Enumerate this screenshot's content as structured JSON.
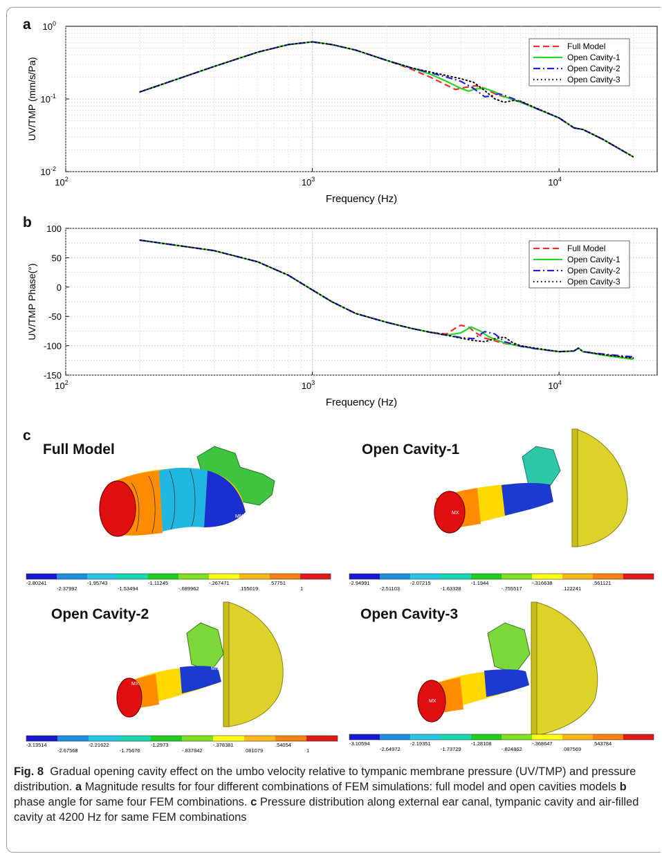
{
  "panels": {
    "a": "a",
    "b": "b",
    "c": "c"
  },
  "chart_data": [
    {
      "type": "line",
      "panel": "a",
      "xlabel": "Frequency (Hz)",
      "ylabel": "UV/TMP (mm/s/Pa)",
      "xscale": "log",
      "yscale": "log",
      "xlim": [
        100,
        25000
      ],
      "ylim": [
        0.01,
        1
      ],
      "grid": true,
      "legend_position": "top-right",
      "x_ticks": [
        {
          "value": 100,
          "base": "10",
          "exp": "2"
        },
        {
          "value": 1000,
          "base": "10",
          "exp": "3"
        },
        {
          "value": 10000,
          "base": "10",
          "exp": "4"
        }
      ],
      "y_ticks": [
        {
          "value": 1,
          "base": "10",
          "exp": "0"
        },
        {
          "value": 0.1,
          "base": "10",
          "exp": "-1"
        },
        {
          "value": 0.01,
          "base": "10",
          "exp": "-2"
        }
      ],
      "series": [
        {
          "name": "Full Model",
          "color": "#ff2a2a",
          "style": "dashed",
          "x": [
            200,
            400,
            600,
            800,
            1000,
            1200,
            1500,
            2000,
            2500,
            3000,
            3500,
            3800,
            4200,
            4600,
            5000,
            5500,
            6000,
            7000,
            8000,
            10000,
            11500,
            12500,
            15000,
            20000
          ],
          "y": [
            0.125,
            0.28,
            0.44,
            0.56,
            0.61,
            0.56,
            0.47,
            0.34,
            0.26,
            0.2,
            0.155,
            0.135,
            0.145,
            0.152,
            0.14,
            0.118,
            0.107,
            0.09,
            0.075,
            0.055,
            0.04,
            0.038,
            0.028,
            0.016
          ]
        },
        {
          "name": "Open Cavity-1",
          "color": "#22d922",
          "style": "solid",
          "x": [
            200,
            400,
            600,
            800,
            1000,
            1200,
            1500,
            2000,
            2500,
            3000,
            3500,
            4000,
            4300,
            4600,
            5000,
            5500,
            6000,
            7000,
            8000,
            10000,
            11500,
            12500,
            15000,
            20000
          ],
          "y": [
            0.125,
            0.28,
            0.44,
            0.56,
            0.61,
            0.56,
            0.47,
            0.34,
            0.27,
            0.22,
            0.175,
            0.14,
            0.128,
            0.138,
            0.14,
            0.125,
            0.108,
            0.09,
            0.075,
            0.055,
            0.04,
            0.038,
            0.028,
            0.016
          ]
        },
        {
          "name": "Open Cavity-2",
          "color": "#2222dd",
          "style": "dashdot",
          "x": [
            200,
            400,
            600,
            800,
            1000,
            1200,
            1500,
            2000,
            2500,
            3000,
            3500,
            4000,
            4500,
            5000,
            5300,
            5700,
            6000,
            7000,
            8000,
            10000,
            11500,
            12500,
            15000,
            20000
          ],
          "y": [
            0.125,
            0.28,
            0.44,
            0.56,
            0.61,
            0.56,
            0.47,
            0.34,
            0.27,
            0.23,
            0.2,
            0.175,
            0.14,
            0.107,
            0.11,
            0.118,
            0.112,
            0.092,
            0.075,
            0.055,
            0.04,
            0.038,
            0.028,
            0.016
          ]
        },
        {
          "name": "Open Cavity-3",
          "color": "#000000",
          "style": "dotted",
          "x": [
            200,
            400,
            600,
            800,
            1000,
            1200,
            1500,
            2000,
            2500,
            3000,
            3500,
            4000,
            4500,
            5000,
            5500,
            6000,
            6500,
            7000,
            8000,
            10000,
            11500,
            12500,
            15000,
            20000
          ],
          "y": [
            0.125,
            0.28,
            0.44,
            0.56,
            0.61,
            0.56,
            0.47,
            0.34,
            0.27,
            0.235,
            0.21,
            0.19,
            0.17,
            0.13,
            0.1,
            0.09,
            0.095,
            0.093,
            0.076,
            0.055,
            0.04,
            0.038,
            0.028,
            0.016
          ]
        }
      ]
    },
    {
      "type": "line",
      "panel": "b",
      "xlabel": "Frequency (Hz)",
      "ylabel": "UV/TMP Phase(°)",
      "xscale": "log",
      "xlim": [
        100,
        25000
      ],
      "ylim": [
        -150,
        100
      ],
      "grid": true,
      "legend_position": "top-right",
      "x_ticks": [
        {
          "value": 100,
          "base": "10",
          "exp": "2"
        },
        {
          "value": 1000,
          "base": "10",
          "exp": "3"
        },
        {
          "value": 10000,
          "base": "10",
          "exp": "4"
        }
      ],
      "y_ticks": [
        {
          "value": 100,
          "label": "100"
        },
        {
          "value": 50,
          "label": "50"
        },
        {
          "value": 0,
          "label": "0"
        },
        {
          "value": -50,
          "label": "-50"
        },
        {
          "value": -100,
          "label": "-100"
        },
        {
          "value": -150,
          "label": "-150"
        }
      ],
      "series": [
        {
          "name": "Full Model",
          "color": "#ff2a2a",
          "style": "dashed",
          "x": [
            200,
            400,
            600,
            800,
            1000,
            1200,
            1500,
            2000,
            2500,
            3000,
            3500,
            3800,
            4000,
            4300,
            4600,
            5000,
            6000,
            7000,
            8000,
            10000,
            11500,
            12000,
            12500,
            15000,
            20000
          ],
          "y": [
            80,
            62,
            43,
            20,
            -5,
            -25,
            -45,
            -60,
            -70,
            -77,
            -80,
            -70,
            -65,
            -68,
            -78,
            -87,
            -96,
            -100,
            -105,
            -110,
            -109,
            -104,
            -110,
            -115,
            -122
          ]
        },
        {
          "name": "Open Cavity-1",
          "color": "#22d922",
          "style": "solid",
          "x": [
            200,
            400,
            600,
            800,
            1000,
            1200,
            1500,
            2000,
            2500,
            3000,
            3500,
            4000,
            4400,
            4800,
            5200,
            6000,
            7000,
            8000,
            10000,
            11500,
            12000,
            12500,
            15000,
            20000
          ],
          "y": [
            80,
            62,
            43,
            20,
            -5,
            -25,
            -45,
            -60,
            -70,
            -77,
            -82,
            -78,
            -68,
            -75,
            -85,
            -95,
            -101,
            -105,
            -110,
            -109,
            -104,
            -110,
            -116,
            -123
          ]
        },
        {
          "name": "Open Cavity-2",
          "color": "#2222dd",
          "style": "dashdot",
          "x": [
            200,
            400,
            600,
            800,
            1000,
            1200,
            1500,
            2000,
            2500,
            3000,
            3500,
            4000,
            4500,
            5000,
            5500,
            6000,
            7000,
            8000,
            10000,
            11500,
            12000,
            12500,
            15000,
            20000
          ],
          "y": [
            80,
            62,
            43,
            20,
            -5,
            -25,
            -45,
            -60,
            -70,
            -77,
            -82,
            -86,
            -88,
            -76,
            -80,
            -93,
            -101,
            -105,
            -110,
            -109,
            -104,
            -110,
            -114,
            -119
          ]
        },
        {
          "name": "Open Cavity-3",
          "color": "#000000",
          "style": "dotted",
          "x": [
            200,
            400,
            600,
            800,
            1000,
            1200,
            1500,
            2000,
            2500,
            3000,
            3500,
            4000,
            4500,
            5000,
            5500,
            6000,
            6500,
            7000,
            8000,
            10000,
            11500,
            12000,
            12500,
            15000,
            20000
          ],
          "y": [
            80,
            62,
            43,
            20,
            -5,
            -25,
            -45,
            -60,
            -70,
            -77,
            -82,
            -87,
            -91,
            -93,
            -88,
            -85,
            -95,
            -100,
            -104,
            -110,
            -109,
            -104,
            -110,
            -115,
            -121
          ]
        }
      ]
    }
  ],
  "fem_panels": [
    {
      "title": "Full Model",
      "marks": [
        "MX",
        "MN"
      ],
      "colorbar_top": [
        "-2.80241",
        "-1.95743",
        "-1.11245",
        "-.267471",
        ".57751"
      ],
      "colorbar_bottom": [
        "-2.37992",
        "-1.53494",
        "-.689962",
        ".155019",
        "1"
      ]
    },
    {
      "title": "Open Cavity-1",
      "marks": [
        "MX"
      ],
      "colorbar_top": [
        "-2.94991",
        "-2.07215",
        "-1.1944",
        "-.316638",
        ".561121"
      ],
      "colorbar_bottom": [
        "-2.51103",
        "-1.63328",
        "-.755517",
        ".122241",
        ""
      ]
    },
    {
      "title": "Open Cavity-2",
      "marks": [
        "MX",
        "MN"
      ],
      "colorbar_top": [
        "-3.13514",
        "-2.21622",
        "-1.2973",
        "-.378381",
        ".54054"
      ],
      "colorbar_bottom": [
        "-2.67568",
        "-1.75676",
        "-.837842",
        ".081079",
        "1"
      ]
    },
    {
      "title": "Open Cavity-3",
      "marks": [
        "MX"
      ],
      "colorbar_top": [
        "-3.10594",
        "-2.19351",
        "-1.28108",
        "-.368647",
        ".543784"
      ],
      "colorbar_bottom": [
        "-2.64972",
        "-1.73729",
        "-.824862",
        ".087569",
        ""
      ]
    }
  ],
  "colorbar_colors": [
    "#1818d0",
    "#1e8ee0",
    "#25c8e0",
    "#18d8b0",
    "#20cc20",
    "#80e020",
    "#ffff18",
    "#ffb818",
    "#ff8010",
    "#e01818"
  ],
  "caption": {
    "fig": "Fig. 8",
    "intro": "Gradual opening cavity effect on the umbo velocity relative to tympanic membrane pressure (UV/TMP) and pressure distribution.",
    "a_label": "a",
    "a_text": "Magnitude results for four different combinations of FEM simulations: full model and open cavities models",
    "b_label": "b",
    "b_text": "phase angle for same four FEM combinations.",
    "c_label": "c",
    "c_text": "Pressure distribution along external ear canal, tympanic cavity and air-filled cavity at 4200 Hz for same FEM combinations"
  }
}
